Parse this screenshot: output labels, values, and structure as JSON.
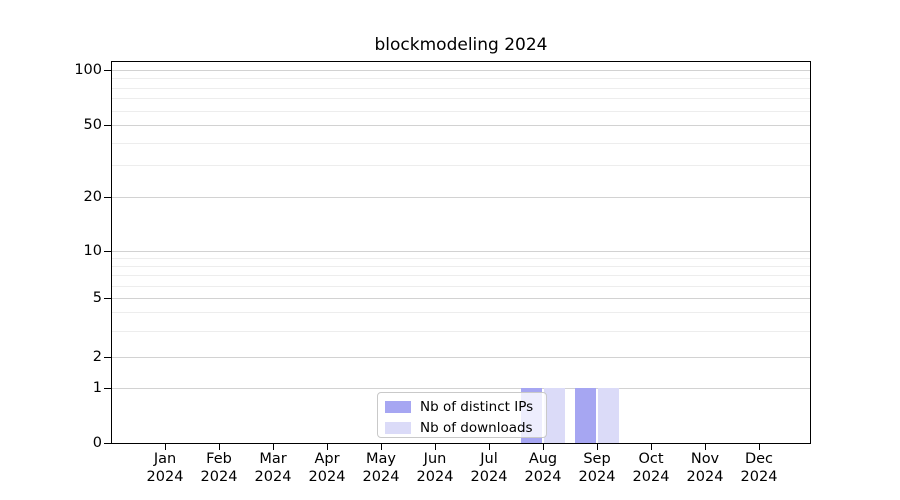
{
  "title": "blockmodeling 2024",
  "chart_data": {
    "type": "bar",
    "title": "blockmodeling 2024",
    "x_ticks": [
      {
        "month": "Jan",
        "year": "2024"
      },
      {
        "month": "Feb",
        "year": "2024"
      },
      {
        "month": "Mar",
        "year": "2024"
      },
      {
        "month": "Apr",
        "year": "2024"
      },
      {
        "month": "May",
        "year": "2024"
      },
      {
        "month": "Jun",
        "year": "2024"
      },
      {
        "month": "Jul",
        "year": "2024"
      },
      {
        "month": "Aug",
        "year": "2024"
      },
      {
        "month": "Sep",
        "year": "2024"
      },
      {
        "month": "Oct",
        "year": "2024"
      },
      {
        "month": "Nov",
        "year": "2024"
      },
      {
        "month": "Dec",
        "year": "2024"
      }
    ],
    "series": [
      {
        "name": "Nb of distinct IPs",
        "color": "#a6a6f2",
        "values": [
          0,
          0,
          0,
          0,
          0,
          0,
          0,
          1,
          1,
          0,
          0,
          0
        ]
      },
      {
        "name": "Nb of downloads",
        "color": "#dbdbf8",
        "values": [
          0,
          0,
          0,
          0,
          0,
          0,
          0,
          1,
          1,
          0,
          0,
          0
        ]
      }
    ],
    "y_axis": {
      "scale": "symlog",
      "ticks": [
        0,
        1,
        2,
        5,
        10,
        20,
        50,
        100
      ],
      "minor_ticks": [
        3,
        4,
        6,
        7,
        8,
        9,
        30,
        40,
        60,
        70,
        80,
        90
      ],
      "range": [
        0,
        110
      ]
    },
    "xlabel": "",
    "ylabel": "",
    "grid": true,
    "legend": {
      "position": "lower center"
    },
    "colors": {
      "major_grid": "#d2d2d2",
      "minor_grid": "#ededed",
      "spine": "#000000",
      "background": "#ffffff"
    }
  }
}
